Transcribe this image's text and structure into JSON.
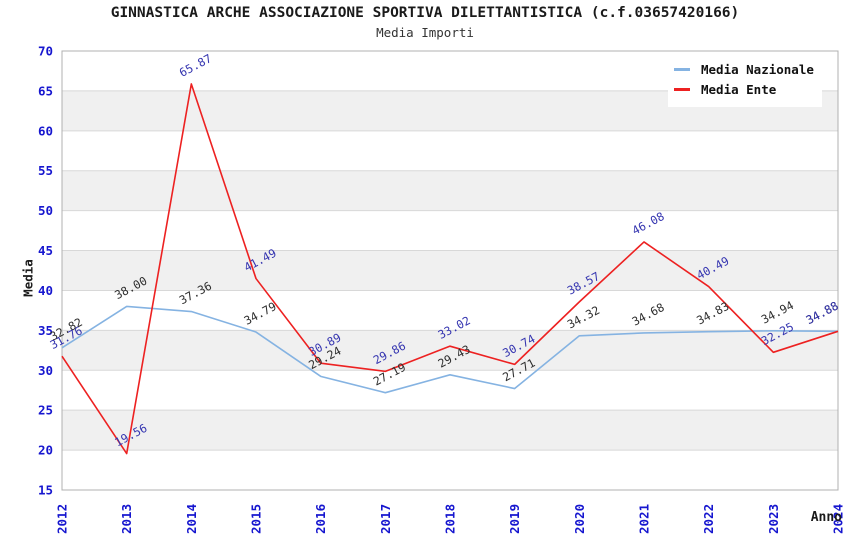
{
  "chart": {
    "title": "GINNASTICA ARCHE ASSOCIAZIONE SPORTIVA DILETTANTISTICA (c.f.03657420166)",
    "subtitle": "Media Importi",
    "ylabel": "Media",
    "xlabel": "Anno"
  },
  "style": {
    "background": "#ffffff",
    "band_gray": "#f0f0f0",
    "band_white": "#ffffff",
    "gridline": "#d8d8d8",
    "plot_border": "#b0b0b0",
    "axis_tick_color": "#1616cf"
  },
  "chart_data": {
    "type": "line",
    "title": "GINNASTICA ARCHE ASSOCIAZIONE SPORTIVA DILETTANTISTICA (c.f.03657420166)",
    "subtitle": "Media Importi",
    "xlabel": "Anno",
    "ylabel": "Media",
    "categories": [
      "2012",
      "2013",
      "2014",
      "2015",
      "2016",
      "2017",
      "2018",
      "2019",
      "2020",
      "2021",
      "2022",
      "2023",
      "2024"
    ],
    "series": [
      {
        "name": "Media Nazionale",
        "color": "#85b3e2",
        "label_color": "#2e2e2e",
        "values": [
          32.82,
          38.0,
          37.36,
          34.79,
          29.24,
          27.19,
          29.43,
          27.71,
          34.32,
          34.68,
          34.83,
          34.94,
          34.88
        ]
      },
      {
        "name": "Media Ente",
        "color": "#ed2121",
        "label_color": "#3535b0",
        "values": [
          31.76,
          19.56,
          65.87,
          41.49,
          30.89,
          29.86,
          33.02,
          30.74,
          38.57,
          46.08,
          40.49,
          32.25,
          34.88
        ]
      }
    ],
    "ylim": [
      15,
      70
    ],
    "ytick_step": 5,
    "grid": "horizontal-bands",
    "legend_position": "top-right",
    "value_labels": "shown above each point, rotated"
  }
}
